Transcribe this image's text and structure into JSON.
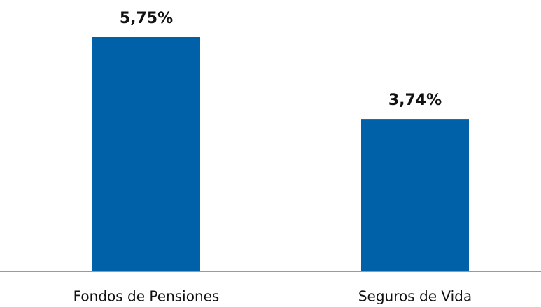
{
  "chart_data": {
    "type": "bar",
    "categories": [
      "Fondos de Pensiones",
      "Seguros de Vida"
    ],
    "values": [
      5.75,
      3.74
    ],
    "value_labels": [
      "5,75%",
      "3,74%"
    ],
    "color": "#0060a8"
  }
}
